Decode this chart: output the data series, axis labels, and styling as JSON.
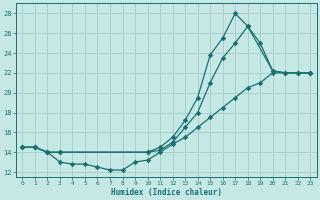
{
  "xlabel": "Humidex (Indice chaleur)",
  "bg_color": "#c5e8e5",
  "grid_color": "#a8d0cc",
  "line_color": "#1a7070",
  "xlim": [
    -0.5,
    23.5
  ],
  "ylim": [
    11.5,
    29.0
  ],
  "xticks": [
    0,
    1,
    2,
    3,
    4,
    5,
    6,
    7,
    8,
    9,
    10,
    11,
    12,
    13,
    14,
    15,
    16,
    17,
    18,
    19,
    20,
    21,
    22,
    23
  ],
  "yticks": [
    12,
    14,
    16,
    18,
    20,
    22,
    24,
    26,
    28
  ],
  "line1_x": [
    0,
    1,
    2,
    3,
    10,
    11,
    12,
    13,
    14,
    15,
    16,
    17,
    18,
    19,
    20,
    21,
    22,
    23
  ],
  "line1_y": [
    14.5,
    14.5,
    14.0,
    14.0,
    14.0,
    14.5,
    15.5,
    17.2,
    19.5,
    23.8,
    25.5,
    28.0,
    26.7,
    25.0,
    22.2,
    22.0,
    22.0,
    22.0
  ],
  "line2_x": [
    0,
    1,
    2,
    3,
    10,
    11,
    12,
    13,
    14,
    15,
    16,
    17,
    18,
    20,
    21,
    22,
    23
  ],
  "line2_y": [
    14.5,
    14.5,
    14.0,
    14.0,
    14.0,
    14.2,
    15.0,
    16.5,
    18.0,
    21.0,
    23.5,
    25.0,
    26.7,
    22.2,
    22.0,
    22.0,
    22.0
  ],
  "line3_x": [
    0,
    1,
    2,
    3,
    4,
    5,
    6,
    7,
    8,
    9,
    10,
    11,
    12,
    13,
    14,
    15,
    16,
    17,
    18,
    19,
    20,
    21,
    22,
    23
  ],
  "line3_y": [
    14.5,
    14.5,
    14.0,
    13.0,
    12.8,
    12.8,
    12.5,
    12.2,
    12.2,
    13.0,
    13.2,
    14.0,
    14.8,
    15.5,
    16.5,
    17.5,
    18.5,
    19.5,
    20.5,
    21.0,
    22.0,
    22.0,
    22.0,
    22.0
  ]
}
